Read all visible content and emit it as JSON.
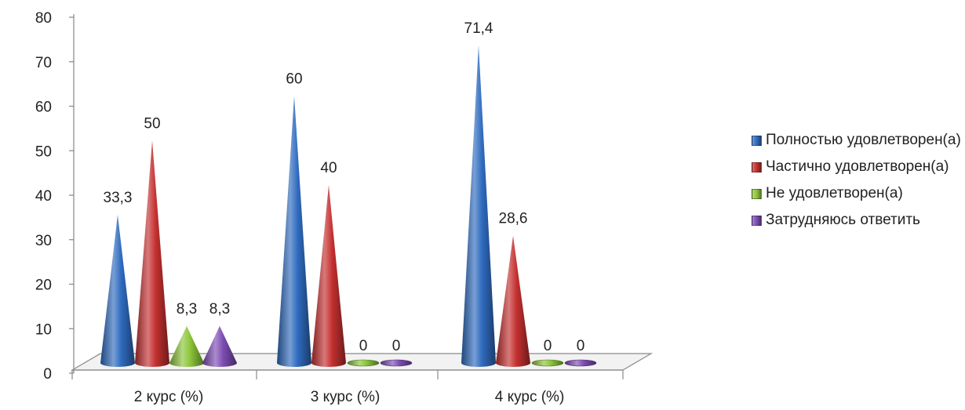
{
  "chart_data": {
    "type": "bar",
    "title": "",
    "xlabel": "",
    "ylabel": "",
    "ylim": [
      0,
      80
    ],
    "yticks": [
      "0",
      "10",
      "20",
      "30",
      "40",
      "50",
      "60",
      "70",
      "80"
    ],
    "categories": [
      "2 курс (%)",
      "3 курс (%)",
      "4 курс (%)"
    ],
    "series": [
      {
        "name": "Полностью удовлетворен(а)",
        "color": "#2f6bbf",
        "values": [
          33.3,
          60,
          71.4
        ],
        "labels": [
          "33,3",
          "60",
          "71,4"
        ]
      },
      {
        "name": "Частично удовлетворен(а)",
        "color": "#c43030",
        "values": [
          50,
          40,
          28.6
        ],
        "labels": [
          "50",
          "40",
          "28,6"
        ]
      },
      {
        "name": "Не удовлетворен(а)",
        "color": "#8cc53a",
        "values": [
          8.3,
          0,
          0
        ],
        "labels": [
          "8,3",
          "0",
          "0"
        ]
      },
      {
        "name": "Затрудняюсь ответить",
        "color": "#7d4cb3",
        "values": [
          8.3,
          0,
          0
        ],
        "labels": [
          "8,3",
          "0",
          "0"
        ]
      }
    ],
    "legend_position": "right",
    "grid": false,
    "mark_shape": "cone"
  }
}
